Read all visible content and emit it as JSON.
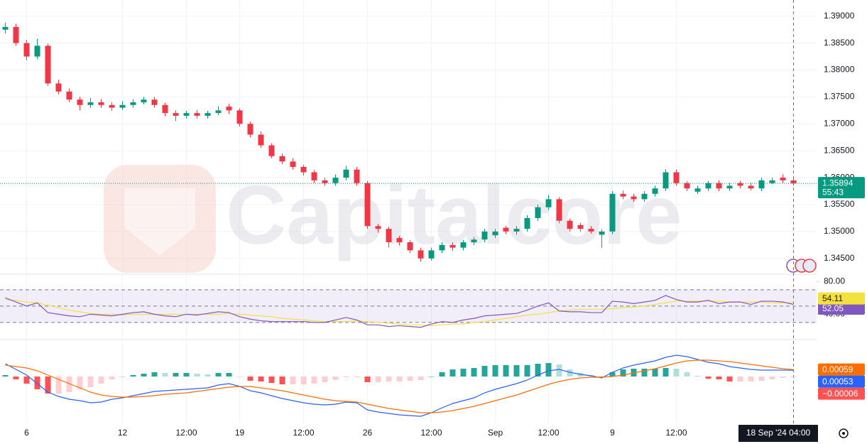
{
  "chart_data": [
    {
      "type": "candlestick",
      "watermark": "Capitalcore",
      "countdown": "55:43",
      "crosshair_label": "18 Sep '24 04:00",
      "categories": [
        null,
        null,
        "6",
        null,
        null,
        null,
        null,
        null,
        null,
        null,
        null,
        "12",
        null,
        null,
        null,
        null,
        null,
        "12:00",
        null,
        null,
        null,
        null,
        "19",
        null,
        null,
        null,
        null,
        null,
        "12:00",
        null,
        null,
        null,
        null,
        null,
        "26",
        null,
        null,
        null,
        null,
        null,
        "12:00",
        null,
        null,
        null,
        null,
        null,
        "Sep",
        null,
        null,
        null,
        null,
        "12:00",
        null,
        null,
        null,
        null,
        null,
        "9",
        null,
        null,
        null,
        null,
        null,
        "12:00",
        null,
        null,
        null,
        null,
        null,
        null,
        null,
        null,
        null,
        null,
        null
      ],
      "open": [
        1.3875,
        1.388,
        1.385,
        1.3825,
        1.3845,
        1.3775,
        1.376,
        1.3745,
        1.3735,
        1.374,
        1.3735,
        1.373,
        1.3735,
        1.374,
        1.3745,
        1.3735,
        1.372,
        1.3715,
        1.372,
        1.3715,
        1.372,
        1.3732,
        1.3725,
        1.37,
        1.368,
        1.366,
        1.364,
        1.363,
        1.362,
        1.361,
        1.3595,
        1.359,
        1.36,
        1.3615,
        1.359,
        1.351,
        1.3505,
        1.3488,
        1.348,
        1.3465,
        1.345,
        1.3465,
        1.3475,
        1.347,
        1.348,
        1.3485,
        1.3493,
        1.3507,
        1.35,
        1.3505,
        1.3525,
        1.3545,
        1.356,
        1.352,
        1.3512,
        1.3505,
        1.3494,
        1.35,
        1.357,
        1.3565,
        1.356,
        1.357,
        1.358,
        1.361,
        1.359,
        1.3574,
        1.358,
        1.359,
        1.358,
        1.359,
        1.3585,
        1.358,
        1.359,
        1.36,
        1.3595
      ],
      "high": [
        1.3888,
        1.3886,
        1.3856,
        1.3858,
        1.3849,
        1.3782,
        1.3766,
        1.375,
        1.3748,
        1.3746,
        1.374,
        1.3742,
        1.3746,
        1.375,
        1.375,
        1.3739,
        1.3725,
        1.3724,
        1.3726,
        1.3724,
        1.3733,
        1.3737,
        1.3729,
        1.3704,
        1.3686,
        1.3664,
        1.3645,
        1.3636,
        1.3624,
        1.3614,
        1.36,
        1.3606,
        1.3622,
        1.362,
        1.3594,
        1.3514,
        1.3509,
        1.3492,
        1.3484,
        1.347,
        1.347,
        1.348,
        1.348,
        1.3484,
        1.349,
        1.3505,
        1.3505,
        1.351,
        1.351,
        1.353,
        1.355,
        1.3568,
        1.3564,
        1.3524,
        1.3516,
        1.351,
        1.3504,
        1.3575,
        1.3576,
        1.357,
        1.3575,
        1.3585,
        1.3616,
        1.3615,
        1.3594,
        1.3585,
        1.3594,
        1.3595,
        1.359,
        1.3594,
        1.359,
        1.36,
        1.36,
        1.3606,
        1.36
      ],
      "low": [
        1.3868,
        1.3845,
        1.3818,
        1.382,
        1.377,
        1.3755,
        1.374,
        1.3725,
        1.373,
        1.373,
        1.3724,
        1.3726,
        1.373,
        1.3736,
        1.373,
        1.3714,
        1.3705,
        1.371,
        1.371,
        1.371,
        1.3716,
        1.3718,
        1.3695,
        1.3675,
        1.3655,
        1.3636,
        1.3625,
        1.3615,
        1.3604,
        1.359,
        1.3585,
        1.3585,
        1.3595,
        1.3585,
        1.3505,
        1.3498,
        1.347,
        1.3474,
        1.346,
        1.3444,
        1.3446,
        1.346,
        1.3464,
        1.3465,
        1.3475,
        1.348,
        1.3488,
        1.3495,
        1.3494,
        1.35,
        1.352,
        1.354,
        1.3515,
        1.35,
        1.35,
        1.3496,
        1.347,
        1.3495,
        1.356,
        1.3555,
        1.3555,
        1.3565,
        1.3575,
        1.3585,
        1.3575,
        1.357,
        1.3575,
        1.3575,
        1.3575,
        1.358,
        1.3576,
        1.3575,
        1.3588,
        1.359,
        1.3585
      ],
      "close": [
        1.388,
        1.385,
        1.3825,
        1.3845,
        1.3775,
        1.376,
        1.3745,
        1.3735,
        1.374,
        1.3735,
        1.373,
        1.3735,
        1.374,
        1.3745,
        1.3735,
        1.372,
        1.3715,
        1.372,
        1.3715,
        1.372,
        1.3725,
        1.3725,
        1.37,
        1.368,
        1.366,
        1.364,
        1.363,
        1.362,
        1.361,
        1.3595,
        1.359,
        1.36,
        1.3615,
        1.359,
        1.351,
        1.3505,
        1.348,
        1.348,
        1.3465,
        1.345,
        1.3465,
        1.3475,
        1.347,
        1.348,
        1.3485,
        1.35,
        1.35,
        1.35,
        1.3505,
        1.3525,
        1.3545,
        1.356,
        1.352,
        1.3505,
        1.3505,
        1.35,
        1.35,
        1.357,
        1.3565,
        1.356,
        1.357,
        1.358,
        1.361,
        1.359,
        1.358,
        1.358,
        1.359,
        1.358,
        1.3585,
        1.3585,
        1.358,
        1.3595,
        1.3595,
        1.3595,
        1.35894
      ],
      "up_color": "#089981",
      "down_color": "#f23645",
      "ylim": [
        1.3422,
        1.393
      ],
      "yticks": [
        {
          "value": 1.345,
          "label": "1.34500"
        },
        {
          "value": 1.35,
          "label": "1.35000"
        },
        {
          "value": 1.355,
          "label": "1.35500"
        },
        {
          "value": 1.36,
          "label": "1.36000"
        },
        {
          "value": 1.365,
          "label": "1.36500"
        },
        {
          "value": 1.37,
          "label": "1.37000"
        },
        {
          "value": 1.375,
          "label": "1.37500"
        },
        {
          "value": 1.38,
          "label": "1.38000"
        },
        {
          "value": 1.385,
          "label": "1.38500"
        },
        {
          "value": 1.39,
          "label": "1.39000"
        }
      ],
      "grid": true
    },
    {
      "type": "rsi",
      "ylim": [
        9,
        89
      ],
      "yticks": [
        {
          "value": 40,
          "label": "40.00"
        },
        {
          "value": 80,
          "label": "80.00"
        }
      ],
      "levels": [
        70,
        50,
        30
      ],
      "band_color": "#7e57c2",
      "series": [
        {
          "color": "#7e57c2",
          "values": [
            60,
            55,
            50,
            54,
            42,
            40,
            38,
            37,
            40,
            39,
            38,
            40,
            42,
            43,
            40,
            38,
            37,
            40,
            39,
            41,
            43,
            42,
            37,
            34,
            32,
            31,
            31,
            31,
            31,
            30,
            30,
            33,
            36,
            33,
            27,
            27,
            25,
            26,
            25,
            24,
            28,
            31,
            30,
            33,
            35,
            38,
            39,
            40,
            41,
            45,
            50,
            54,
            44,
            43,
            43,
            42,
            42,
            56,
            55,
            53,
            55,
            57,
            63,
            58,
            55,
            55,
            57,
            53,
            55,
            55,
            52,
            56,
            56,
            55,
            52.05
          ]
        },
        {
          "color": "#f5e13d",
          "values": [
            58,
            57,
            55,
            54,
            51,
            48,
            45,
            43,
            41,
            40,
            40,
            39,
            40,
            40,
            40,
            40,
            40,
            40,
            40,
            40,
            40,
            41,
            40,
            39,
            38,
            37,
            35,
            34,
            33,
            32,
            31,
            31,
            31,
            32,
            31,
            30,
            29,
            28,
            27,
            27,
            26,
            27,
            28,
            28,
            30,
            31,
            33,
            35,
            37,
            39,
            40,
            42,
            44,
            45,
            46,
            46,
            46,
            47,
            48,
            49,
            50,
            52,
            54,
            56,
            56,
            56,
            56,
            56,
            55,
            55,
            55,
            55,
            54,
            54,
            54.11
          ]
        }
      ]
    },
    {
      "type": "macd",
      "ylim": [
        -0.0039,
        0.00312
      ],
      "series": [
        {
          "color": "#2962ff",
          "values": [
            0.00108,
            0.0006,
            0.00012,
            -0.0006,
            -0.00132,
            -0.00168,
            -0.00192,
            -0.00204,
            -0.00222,
            -0.00216,
            -0.00192,
            -0.0018,
            -0.00162,
            -0.00144,
            -0.00126,
            -0.0012,
            -0.00114,
            -0.00108,
            -0.00102,
            -0.00096,
            -0.00072,
            -0.0006,
            -0.00084,
            -0.0012,
            -0.00138,
            -0.00162,
            -0.00186,
            -0.00204,
            -0.00222,
            -0.00234,
            -0.0024,
            -0.00234,
            -0.00216,
            -0.00222,
            -0.00282,
            -0.003,
            -0.00312,
            -0.00324,
            -0.0033,
            -0.00336,
            -0.00306,
            -0.00264,
            -0.00228,
            -0.00204,
            -0.0018,
            -0.00138,
            -0.00108,
            -0.00084,
            -0.0006,
            -0.0003,
            0.00012,
            0.00048,
            0.0006,
            0.00036,
            0.00018,
            6e-05,
            -0.00012,
            0.00036,
            0.00072,
            0.00096,
            0.00114,
            0.00132,
            0.00162,
            0.0018,
            0.00168,
            0.00144,
            0.0012,
            0.00108,
            0.00084,
            0.00072,
            0.0006,
            0.00054,
            0.00054,
            0.00054,
            0.00053
          ]
        },
        {
          "color": "#ff6d00",
          "values": [
            0.00096,
            0.00084,
            0.00072,
            0.00048,
            0.00012,
            -0.00024,
            -0.0006,
            -0.00096,
            -0.00132,
            -0.00156,
            -0.00168,
            -0.00174,
            -0.00174,
            -0.00168,
            -0.00162,
            -0.0015,
            -0.00144,
            -0.00138,
            -0.00126,
            -0.00114,
            -0.00102,
            -0.0009,
            -0.00084,
            -0.00084,
            -0.00096,
            -0.00108,
            -0.0012,
            -0.00138,
            -0.00156,
            -0.00174,
            -0.00192,
            -0.00204,
            -0.0021,
            -0.00216,
            -0.00234,
            -0.00252,
            -0.0027,
            -0.00282,
            -0.00294,
            -0.00306,
            -0.00306,
            -0.003,
            -0.00288,
            -0.0027,
            -0.00252,
            -0.00228,
            -0.00204,
            -0.0018,
            -0.00156,
            -0.00126,
            -0.00096,
            -0.00066,
            -0.00042,
            -0.00024,
            -0.00012,
            -6e-05,
            -6e-05,
            0,
            0.00012,
            0.0003,
            0.00048,
            0.00066,
            0.0009,
            0.00114,
            0.00132,
            0.00138,
            0.00138,
            0.00132,
            0.00126,
            0.00114,
            0.00102,
            0.0009,
            0.00078,
            0.00066,
            0.00059
          ]
        }
      ],
      "histogram": {
        "colors": [
          "#26a69a",
          "#b2dfdb",
          "#ffcdd2",
          "#ff5252"
        ],
        "values": [
          0.00012,
          -0.00024,
          -0.0006,
          -0.00108,
          -0.00144,
          -0.00144,
          -0.00132,
          -0.00108,
          -0.0009,
          -0.0006,
          -0.00024,
          -6e-05,
          0.00012,
          0.00024,
          0.00036,
          0.0003,
          0.0003,
          0.0003,
          0.00024,
          0.00018,
          0.0003,
          0.0003,
          0,
          -0.00036,
          -0.00042,
          -0.00054,
          -0.00066,
          -0.00066,
          -0.00066,
          -0.0006,
          -0.00048,
          -0.0003,
          -6e-05,
          -6e-05,
          -0.00048,
          -0.00048,
          -0.00042,
          -0.00042,
          -0.00036,
          -0.0003,
          0,
          0.00036,
          0.0006,
          0.00066,
          0.00072,
          0.0009,
          0.00096,
          0.00096,
          0.00096,
          0.00096,
          0.00108,
          0.00114,
          0.00102,
          0.0006,
          0.0003,
          0.00012,
          -6e-05,
          0.00036,
          0.0006,
          0.00066,
          0.00066,
          0.00066,
          0.00072,
          0.00066,
          0.00036,
          6e-05,
          -0.00018,
          -0.00024,
          -0.00042,
          -0.00042,
          -0.00042,
          -0.00036,
          -0.00024,
          -0.00012,
          -6e-05
        ],
        "value_labels": [
          null,
          null,
          null,
          null,
          null,
          null,
          null,
          null,
          null,
          null,
          null,
          null,
          null,
          null,
          null,
          null,
          null,
          null,
          null,
          null,
          null,
          null,
          null,
          null,
          null,
          null,
          null,
          null,
          null,
          null,
          null,
          null,
          null,
          null,
          null,
          null,
          null,
          null,
          null,
          null,
          null,
          null,
          null,
          null,
          null,
          null,
          null,
          null,
          null,
          null,
          null,
          null,
          null,
          null,
          null,
          null,
          null,
          null,
          null,
          null,
          null,
          null,
          null,
          null,
          null,
          null,
          null,
          null,
          null,
          null,
          null,
          null,
          null,
          null,
          "−0.00006"
        ]
      }
    }
  ]
}
